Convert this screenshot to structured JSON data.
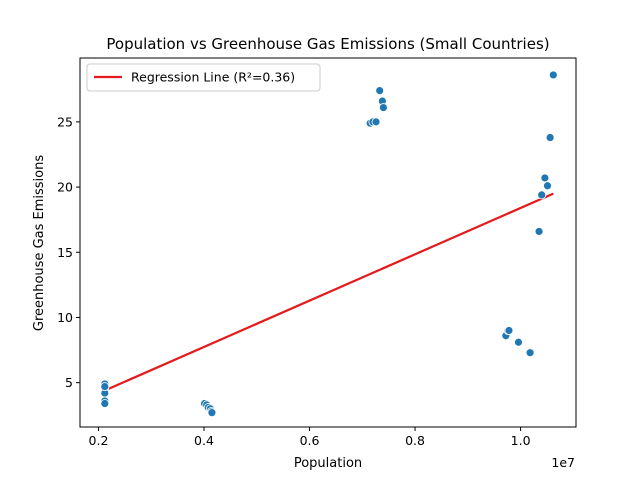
{
  "chart_data": {
    "type": "scatter",
    "title": "Population vs Greenhouse Gas Emissions (Small Countries)",
    "xlabel": "Population",
    "ylabel": "Greenhouse Gas Emissions",
    "x_offset_label": "1e7",
    "xlim": [
      1650000,
      11050000
    ],
    "ylim": [
      1.6,
      29.9
    ],
    "xticks": [
      2000000,
      4000000,
      6000000,
      8000000,
      10000000
    ],
    "xtick_labels": [
      "0.2",
      "0.4",
      "0.6",
      "0.8",
      "1.0"
    ],
    "yticks": [
      5,
      10,
      15,
      20,
      25
    ],
    "ytick_labels": [
      "5",
      "10",
      "15",
      "20",
      "25"
    ],
    "grid": false,
    "legend_position": "top-left",
    "legend": [
      "Regression Line (R²=0.36)"
    ],
    "colors": {
      "points": "#1f77b4",
      "regression": "#e41a1c"
    },
    "series": [
      {
        "type": "scatter",
        "x": [
          2120000,
          2120000,
          2120000,
          2120000,
          2120000,
          2120000,
          4010000,
          4050000,
          4080000,
          4120000,
          4140000,
          4150000,
          7150000,
          7200000,
          7260000,
          7330000,
          7380000,
          7400000,
          9720000,
          9760000,
          9780000,
          9960000,
          10180000,
          10350000,
          10400000,
          10460000,
          10510000,
          10560000,
          10620000
        ],
        "y": [
          4.9,
          4.6,
          4.2,
          3.6,
          3.4,
          4.7,
          3.4,
          3.3,
          3.1,
          3.0,
          2.8,
          2.7,
          24.9,
          25.0,
          25.0,
          27.4,
          26.6,
          26.1,
          8.6,
          9.0,
          9.0,
          8.1,
          7.3,
          16.6,
          19.4,
          20.7,
          20.1,
          23.8,
          28.6
        ]
      },
      {
        "type": "line",
        "name": "Regression Line (R²=0.36)",
        "x": [
          2120000,
          10620000
        ],
        "y": [
          4.4,
          19.5
        ]
      }
    ]
  }
}
